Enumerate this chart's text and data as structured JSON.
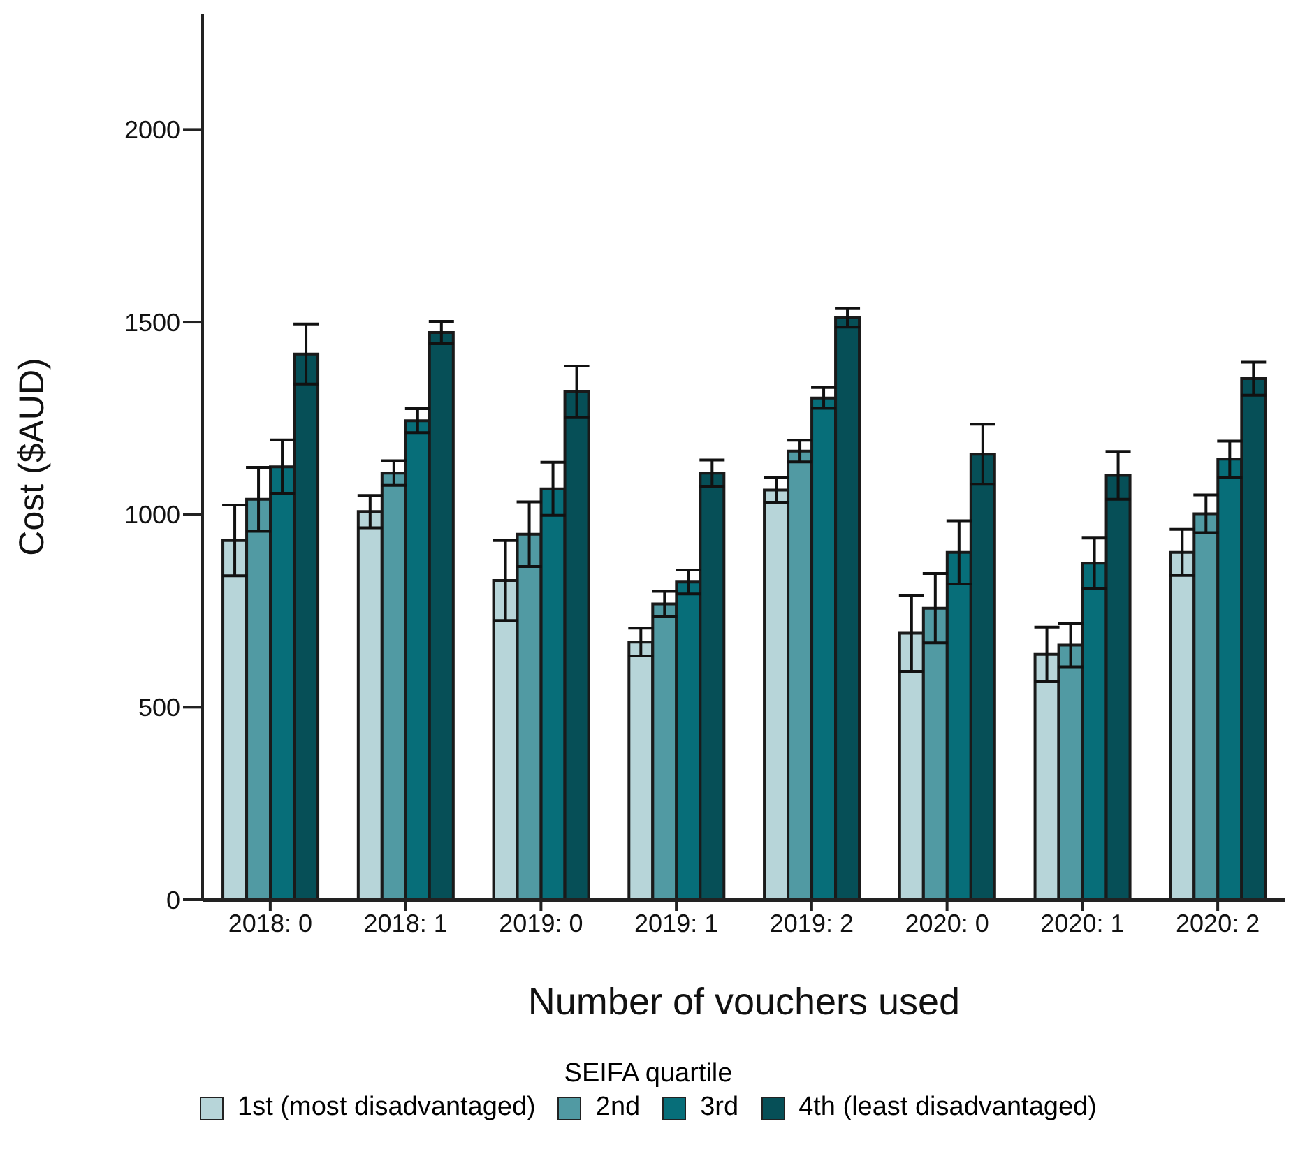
{
  "chart_data": {
    "type": "bar",
    "xlabel": "Number of vouchers used",
    "ylabel": "Cost ($AUD)",
    "legend_title": "SEIFA quartile",
    "categories": [
      "2018: 0",
      "2018: 1",
      "2019: 0",
      "2019: 1",
      "2019: 2",
      "2020: 0",
      "2020: 1",
      "2020: 2"
    ],
    "series": [
      {
        "name": "1st (most disadvantaged)",
        "color": "#b7d5d9",
        "values": [
          933,
          1008,
          829,
          669,
          1064,
          692,
          637,
          902
        ],
        "errors": [
          92,
          42,
          104,
          36,
          32,
          99,
          71,
          60
        ]
      },
      {
        "name": "2nd",
        "color": "#519aa3",
        "values": [
          1040,
          1108,
          949,
          768,
          1165,
          757,
          661,
          1002
        ],
        "errors": [
          83,
          32,
          84,
          33,
          28,
          90,
          56,
          49
        ]
      },
      {
        "name": "3rd",
        "color": "#076e79",
        "values": [
          1124,
          1244,
          1067,
          825,
          1303,
          902,
          874,
          1144
        ],
        "errors": [
          70,
          31,
          69,
          31,
          27,
          82,
          65,
          47
        ]
      },
      {
        "name": "4th (least disadvantaged)",
        "color": "#064f57",
        "values": [
          1417,
          1473,
          1319,
          1108,
          1511,
          1157,
          1102,
          1353
        ],
        "errors": [
          78,
          29,
          67,
          34,
          24,
          78,
          62,
          43
        ]
      }
    ],
    "ylim": [
      0,
      2300
    ],
    "yticks": [
      0,
      500,
      1000,
      1500,
      2000
    ],
    "grid": false,
    "legend": "bottom"
  }
}
